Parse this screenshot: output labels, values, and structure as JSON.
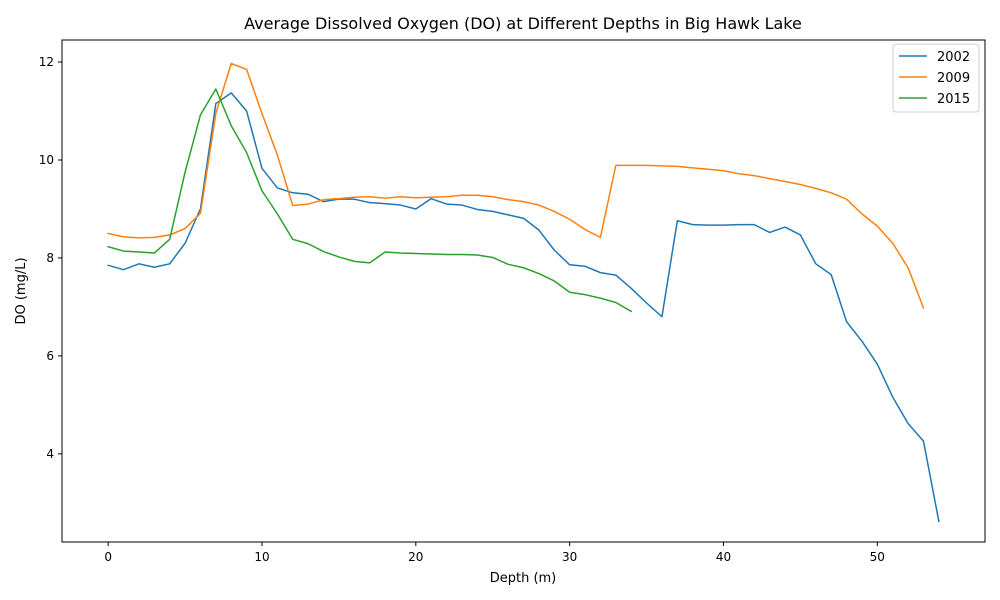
{
  "chart_data": {
    "type": "line",
    "title": "Average Dissolved Oxygen (DO) at Different Depths in Big Hawk Lake",
    "xlabel": "Depth (m)",
    "ylabel": "DO (mg/L)",
    "xlim": [
      -3,
      57
    ],
    "ylim": [
      2.2,
      12.45
    ],
    "xticks": [
      0,
      10,
      20,
      30,
      40,
      50
    ],
    "yticks": [
      4,
      6,
      8,
      10,
      12
    ],
    "grid": false,
    "legend_position": "top-right",
    "series": [
      {
        "name": "2002",
        "color": "#1f77b4",
        "points": [
          [
            0,
            7.85
          ],
          [
            1,
            7.76
          ],
          [
            2,
            7.88
          ],
          [
            3,
            7.81
          ],
          [
            4,
            7.88
          ],
          [
            5,
            8.3
          ],
          [
            6,
            9.0
          ],
          [
            7,
            11.15
          ],
          [
            8,
            11.37
          ],
          [
            9,
            11.0
          ],
          [
            10,
            9.83
          ],
          [
            11,
            9.43
          ],
          [
            12,
            9.33
          ],
          [
            13,
            9.3
          ],
          [
            14,
            9.15
          ],
          [
            15,
            9.2
          ],
          [
            16,
            9.2
          ],
          [
            17,
            9.13
          ],
          [
            18,
            9.11
          ],
          [
            19,
            9.08
          ],
          [
            20,
            9.0
          ],
          [
            21,
            9.21
          ],
          [
            22,
            9.1
          ],
          [
            23,
            9.08
          ],
          [
            24,
            8.99
          ],
          [
            25,
            8.95
          ],
          [
            26,
            8.88
          ],
          [
            27,
            8.81
          ],
          [
            28,
            8.57
          ],
          [
            29,
            8.16
          ],
          [
            30,
            7.86
          ],
          [
            31,
            7.83
          ],
          [
            32,
            7.7
          ],
          [
            33,
            7.65
          ],
          [
            34,
            7.38
          ],
          [
            35,
            7.08
          ],
          [
            36,
            6.8
          ],
          [
            37,
            8.76
          ],
          [
            38,
            8.68
          ],
          [
            39,
            8.67
          ],
          [
            40,
            8.67
          ],
          [
            41,
            8.68
          ],
          [
            42,
            8.68
          ],
          [
            43,
            8.52
          ],
          [
            44,
            8.63
          ],
          [
            45,
            8.47
          ],
          [
            46,
            7.88
          ],
          [
            47,
            7.66
          ],
          [
            48,
            6.7
          ],
          [
            49,
            6.3
          ],
          [
            50,
            5.83
          ],
          [
            51,
            5.16
          ],
          [
            52,
            4.62
          ],
          [
            53,
            4.26
          ],
          [
            54,
            2.62
          ]
        ]
      },
      {
        "name": "2009",
        "color": "#ff7f0e",
        "points": [
          [
            0,
            8.5
          ],
          [
            1,
            8.43
          ],
          [
            2,
            8.41
          ],
          [
            3,
            8.42
          ],
          [
            4,
            8.47
          ],
          [
            5,
            8.6
          ],
          [
            6,
            8.91
          ],
          [
            7,
            10.95
          ],
          [
            8,
            11.97
          ],
          [
            9,
            11.85
          ],
          [
            10,
            10.95
          ],
          [
            11,
            10.1
          ],
          [
            12,
            9.07
          ],
          [
            13,
            9.1
          ],
          [
            14,
            9.19
          ],
          [
            15,
            9.21
          ],
          [
            16,
            9.24
          ],
          [
            17,
            9.25
          ],
          [
            18,
            9.22
          ],
          [
            19,
            9.25
          ],
          [
            20,
            9.23
          ],
          [
            21,
            9.24
          ],
          [
            22,
            9.25
          ],
          [
            23,
            9.28
          ],
          [
            24,
            9.28
          ],
          [
            25,
            9.25
          ],
          [
            26,
            9.19
          ],
          [
            27,
            9.15
          ],
          [
            28,
            9.08
          ],
          [
            29,
            8.95
          ],
          [
            30,
            8.79
          ],
          [
            31,
            8.58
          ],
          [
            32,
            8.42
          ],
          [
            33,
            9.89
          ],
          [
            34,
            9.89
          ],
          [
            35,
            9.89
          ],
          [
            36,
            9.88
          ],
          [
            37,
            9.87
          ],
          [
            38,
            9.84
          ],
          [
            39,
            9.81
          ],
          [
            40,
            9.78
          ],
          [
            41,
            9.72
          ],
          [
            42,
            9.68
          ],
          [
            43,
            9.62
          ],
          [
            44,
            9.56
          ],
          [
            45,
            9.5
          ],
          [
            46,
            9.42
          ],
          [
            47,
            9.33
          ],
          [
            48,
            9.2
          ],
          [
            49,
            8.9
          ],
          [
            50,
            8.65
          ],
          [
            51,
            8.3
          ],
          [
            52,
            7.8
          ],
          [
            53,
            6.98
          ]
        ]
      },
      {
        "name": "2015",
        "color": "#2ca02c",
        "points": [
          [
            0,
            8.23
          ],
          [
            1,
            8.14
          ],
          [
            2,
            8.12
          ],
          [
            3,
            8.1
          ],
          [
            4,
            8.38
          ],
          [
            5,
            9.75
          ],
          [
            6,
            10.92
          ],
          [
            7,
            11.45
          ],
          [
            8,
            10.7
          ],
          [
            9,
            10.15
          ],
          [
            10,
            9.37
          ],
          [
            11,
            8.9
          ],
          [
            12,
            8.38
          ],
          [
            13,
            8.29
          ],
          [
            14,
            8.13
          ],
          [
            15,
            8.02
          ],
          [
            16,
            7.93
          ],
          [
            17,
            7.9
          ],
          [
            18,
            8.12
          ],
          [
            19,
            8.1
          ],
          [
            20,
            8.09
          ],
          [
            21,
            8.08
          ],
          [
            22,
            8.07
          ],
          [
            23,
            8.07
          ],
          [
            24,
            8.06
          ],
          [
            25,
            8.01
          ],
          [
            26,
            7.87
          ],
          [
            27,
            7.8
          ],
          [
            28,
            7.68
          ],
          [
            29,
            7.53
          ],
          [
            30,
            7.3
          ],
          [
            31,
            7.25
          ],
          [
            32,
            7.18
          ],
          [
            33,
            7.09
          ],
          [
            34,
            6.91
          ]
        ]
      }
    ]
  }
}
